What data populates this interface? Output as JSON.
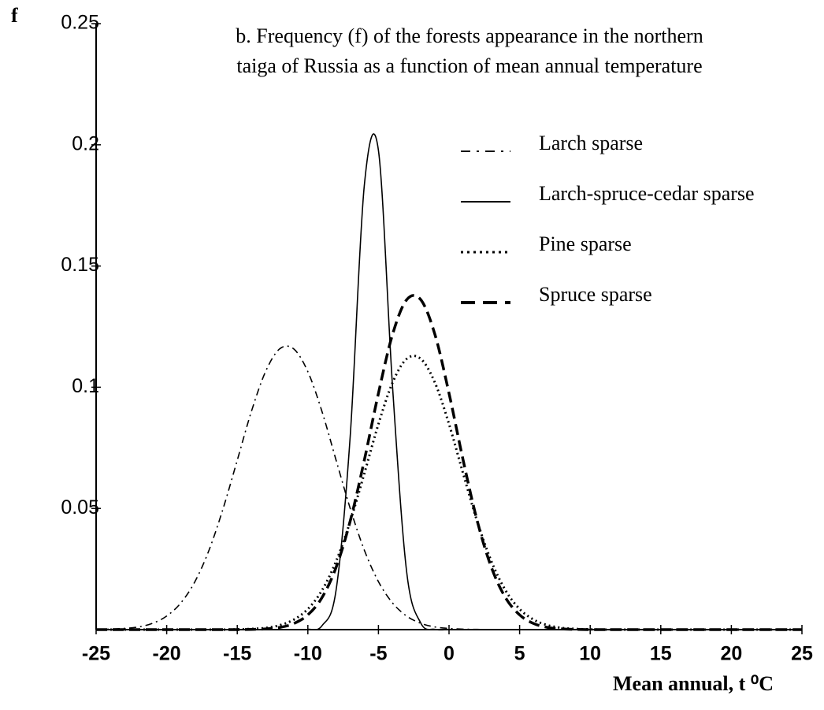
{
  "chart_data": {
    "type": "line",
    "title": [
      "b. Frequency (f) of the forests appearance in the northern",
      "taiga of Russia as a function of  mean annual temperature"
    ],
    "y_label": "f",
    "x_label": "Mean annual, t ⁰C",
    "x": [
      -25,
      -24,
      -23,
      -22,
      -21,
      -20,
      -19,
      -18,
      -17,
      -16,
      -15,
      -14,
      -13,
      -12,
      -11,
      -10,
      -9,
      -8,
      -7,
      -6,
      -5,
      -4,
      -3,
      -2,
      -1,
      0,
      1,
      2,
      3,
      4,
      5,
      6,
      7,
      8,
      9,
      10,
      11,
      12,
      13,
      14,
      15,
      16,
      17,
      18,
      19,
      20,
      21,
      22,
      23,
      24,
      25
    ],
    "series": [
      {
        "name": "Larch sparse",
        "color": "#000000",
        "dash": "dashdot",
        "values": [
          0.0001,
          0.0002,
          0.0005,
          0.0011,
          0.0026,
          0.0056,
          0.011,
          0.0198,
          0.0328,
          0.05,
          0.0699,
          0.09,
          0.1064,
          0.1158,
          0.1158,
          0.1064,
          0.09,
          0.0699,
          0.05,
          0.0328,
          0.0198,
          0.011,
          0.0056,
          0.0026,
          0.0011,
          0.0005,
          0.0002,
          0.0001,
          0,
          0,
          0,
          0,
          0,
          0,
          0,
          0,
          0,
          0,
          0,
          0,
          0,
          0,
          0,
          0,
          0,
          0,
          0,
          0,
          0,
          0,
          0
        ]
      },
      {
        "name": "Larch-spruce-cedar sparse",
        "color": "#000000",
        "dash": "solid",
        "values": [
          0,
          0,
          0,
          0,
          0,
          0,
          0,
          0,
          0,
          0,
          0,
          0,
          0,
          0,
          0,
          0.0001,
          0.0016,
          0.0163,
          0.0798,
          0.1833,
          0.1977,
          0.1001,
          0.0238,
          0.0027,
          0.0001,
          0,
          0,
          0,
          0,
          0,
          0,
          0,
          0,
          0,
          0,
          0,
          0,
          0,
          0,
          0,
          0,
          0,
          0,
          0,
          0,
          0,
          0,
          0,
          0,
          0,
          0
        ]
      },
      {
        "name": "Pine sparse",
        "color": "#000000",
        "dash": "dotted",
        "values": [
          0,
          0,
          0,
          0,
          0,
          0,
          0,
          0,
          0,
          0,
          0.0001,
          0.0003,
          0.0007,
          0.0018,
          0.0041,
          0.0085,
          0.0162,
          0.0282,
          0.0446,
          0.0644,
          0.0848,
          0.1019,
          0.1117,
          0.1117,
          0.1019,
          0.0848,
          0.0644,
          0.0446,
          0.0282,
          0.0162,
          0.0085,
          0.0041,
          0.0018,
          0.0007,
          0.0003,
          0.0001,
          0,
          0,
          0,
          0,
          0,
          0,
          0,
          0,
          0,
          0,
          0,
          0,
          0,
          0,
          0
        ]
      },
      {
        "name": "Spruce sparse",
        "color": "#000000",
        "dash": "dashed",
        "values": [
          0,
          0,
          0,
          0,
          0,
          0,
          0,
          0,
          0,
          0,
          0,
          0.0001,
          0.0003,
          0.0009,
          0.0025,
          0.0061,
          0.0132,
          0.0257,
          0.0448,
          0.0699,
          0.0975,
          0.1218,
          0.1361,
          0.1361,
          0.1218,
          0.0975,
          0.0699,
          0.0448,
          0.0257,
          0.0132,
          0.0061,
          0.0025,
          0.0009,
          0.0003,
          0.0001,
          0,
          0,
          0,
          0,
          0,
          0,
          0,
          0,
          0,
          0,
          0,
          0,
          0,
          0,
          0,
          0
        ]
      }
    ],
    "xlim": [
      -25,
      25
    ],
    "xticks": [
      -25,
      -20,
      -15,
      -10,
      -5,
      0,
      5,
      10,
      15,
      20,
      25
    ],
    "ylim": [
      0,
      0.25
    ],
    "yticks": [
      0.05,
      0.1,
      0.15,
      0.2,
      0.25
    ],
    "grid": false,
    "legend": "upper right"
  }
}
